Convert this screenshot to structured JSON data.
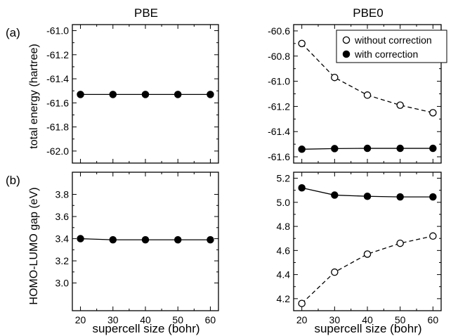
{
  "figure": {
    "column_titles": [
      "PBE",
      "PBE0"
    ],
    "row_labels": [
      "(a)",
      "(b)"
    ],
    "ylabels": [
      "total energy (hartree)",
      "HOMO-LUMO gap (eV)"
    ],
    "xlabel": "supercell size (bohr)",
    "legend": {
      "placement": "top-right (top-right panel)",
      "entries": [
        {
          "label": "without correction",
          "marker": "open-circle",
          "line": "dashed"
        },
        {
          "label": "with correction",
          "marker": "filled-circle",
          "line": "solid"
        }
      ]
    },
    "colors": {
      "ink": "#000000",
      "background": "#ffffff"
    }
  },
  "chart_data": [
    {
      "type": "line",
      "title": "PBE",
      "xlabel": "",
      "ylabel": "total energy (hartree)",
      "xlim": [
        17.5,
        62.5
      ],
      "ylim": [
        -62.1,
        -60.95
      ],
      "xticks": [
        20,
        30,
        40,
        50,
        60
      ],
      "xtick_labels": [
        "",
        "",
        "",
        "",
        ""
      ],
      "yticks": [
        -62.0,
        -61.8,
        -61.6,
        -61.4,
        -61.2,
        -61.0
      ],
      "ytick_labels": [
        "-62.0",
        "-61.8",
        "-61.6",
        "-61.4",
        "-61.2",
        "-61.0"
      ],
      "grid": false,
      "x": [
        20,
        30,
        40,
        50,
        60
      ],
      "series": [
        {
          "marker": "filled",
          "line": "solid",
          "values": [
            -61.53,
            -61.53,
            -61.53,
            -61.53,
            -61.53
          ]
        }
      ]
    },
    {
      "type": "line",
      "title": "PBE0",
      "xlabel": "",
      "ylabel": "",
      "xlim": [
        17.5,
        62.5
      ],
      "ylim": [
        -61.65,
        -60.55
      ],
      "xticks": [
        20,
        30,
        40,
        50,
        60
      ],
      "xtick_labels": [
        "",
        "",
        "",
        "",
        ""
      ],
      "yticks": [
        -61.6,
        -61.4,
        -61.2,
        -61.0,
        -60.8,
        -60.6
      ],
      "ytick_labels": [
        "-61.6",
        "-61.4",
        "-61.2",
        "-61.0",
        "-60.8",
        "-60.6"
      ],
      "grid": false,
      "x": [
        20,
        30,
        40,
        50,
        60
      ],
      "series": [
        {
          "name": "without correction",
          "marker": "open",
          "line": "dashed",
          "values": [
            -60.7,
            -60.97,
            -61.11,
            -61.19,
            -61.25
          ]
        },
        {
          "name": "with correction",
          "marker": "filled",
          "line": "solid",
          "values": [
            -61.54,
            -61.535,
            -61.533,
            -61.533,
            -61.533
          ]
        }
      ]
    },
    {
      "type": "line",
      "title": "",
      "xlabel": "supercell size (bohr)",
      "ylabel": "HOMO-LUMO gap (eV)",
      "xlim": [
        17.5,
        62.5
      ],
      "ylim": [
        2.75,
        4.0
      ],
      "xticks": [
        20,
        30,
        40,
        50,
        60
      ],
      "xtick_labels": [
        "20",
        "30",
        "40",
        "50",
        "60"
      ],
      "yticks": [
        3.0,
        3.2,
        3.4,
        3.6,
        3.8
      ],
      "ytick_labels": [
        "3.0",
        "3.2",
        "3.4",
        "3.6",
        "3.8"
      ],
      "grid": false,
      "x": [
        20,
        30,
        40,
        50,
        60
      ],
      "series": [
        {
          "marker": "filled",
          "line": "solid",
          "values": [
            3.4,
            3.39,
            3.39,
            3.39,
            3.39
          ]
        }
      ]
    },
    {
      "type": "line",
      "title": "",
      "xlabel": "supercell size (bohr)",
      "ylabel": "",
      "xlim": [
        17.5,
        62.5
      ],
      "ylim": [
        4.1,
        5.25
      ],
      "xticks": [
        20,
        30,
        40,
        50,
        60
      ],
      "xtick_labels": [
        "20",
        "30",
        "40",
        "50",
        "60"
      ],
      "yticks": [
        4.2,
        4.4,
        4.6,
        4.8,
        5.0,
        5.2
      ],
      "ytick_labels": [
        "4.2",
        "4.4",
        "4.6",
        "4.8",
        "5.0",
        "5.2"
      ],
      "grid": false,
      "x": [
        20,
        30,
        40,
        50,
        60
      ],
      "series": [
        {
          "name": "without correction",
          "marker": "open",
          "line": "dashed",
          "values": [
            4.16,
            4.42,
            4.57,
            4.66,
            4.72
          ]
        },
        {
          "name": "with correction",
          "marker": "filled",
          "line": "solid",
          "values": [
            5.12,
            5.06,
            5.05,
            5.045,
            5.045
          ]
        }
      ]
    }
  ]
}
